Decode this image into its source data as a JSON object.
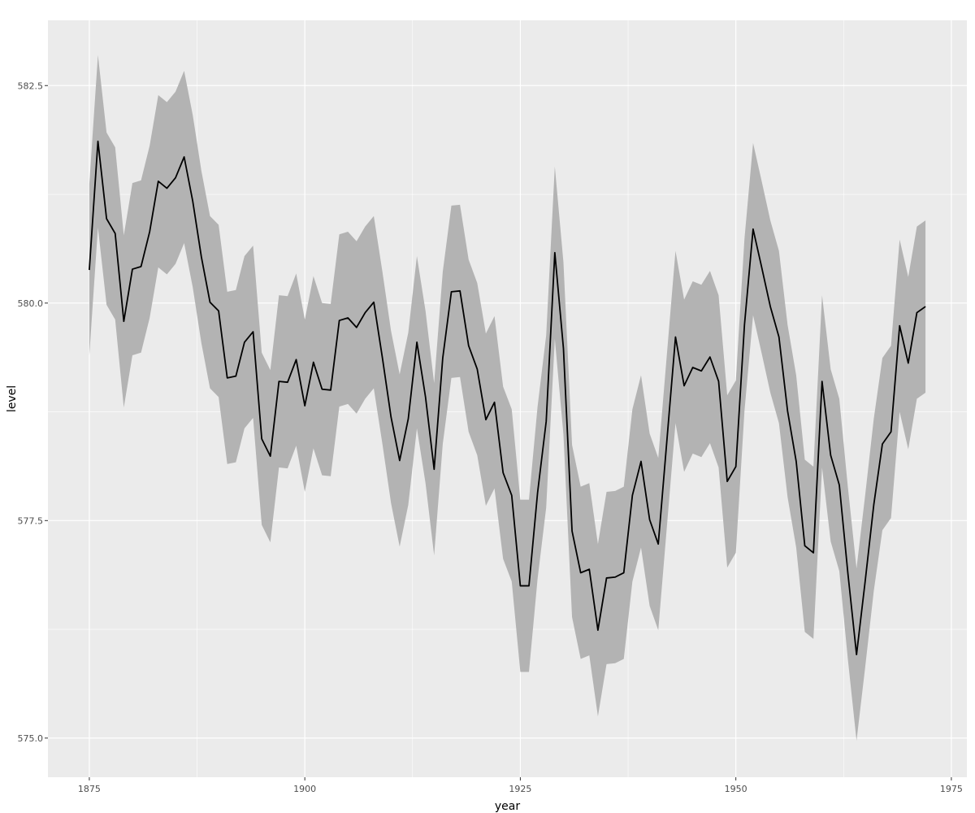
{
  "chart_data": {
    "type": "area",
    "title": "",
    "xlabel": "year",
    "ylabel": "level",
    "xlim": [
      1870.2,
      1976.8
    ],
    "ylim": [
      574.55,
      583.25
    ],
    "x_ticks": [
      1875,
      1900,
      1925,
      1950,
      1975
    ],
    "x_tick_labels": [
      "1875",
      "1900",
      "1925",
      "1950",
      "1975"
    ],
    "y_ticks": [
      575.0,
      577.5,
      580.0,
      582.5
    ],
    "y_tick_labels": [
      "575.0",
      "577.5",
      "580.0",
      "582.5"
    ],
    "grid": true,
    "legend": "none",
    "colors": {
      "panel": "#ebebeb",
      "grid": "#ffffff",
      "ribbon": "#b3b3b3",
      "line": "#000000"
    },
    "x": [
      1875,
      1876,
      1877,
      1878,
      1879,
      1880,
      1881,
      1882,
      1883,
      1884,
      1885,
      1886,
      1887,
      1888,
      1889,
      1890,
      1891,
      1892,
      1893,
      1894,
      1895,
      1896,
      1897,
      1898,
      1899,
      1900,
      1901,
      1902,
      1903,
      1904,
      1905,
      1906,
      1907,
      1908,
      1909,
      1910,
      1911,
      1912,
      1913,
      1914,
      1915,
      1916,
      1917,
      1918,
      1919,
      1920,
      1921,
      1922,
      1923,
      1924,
      1925,
      1926,
      1927,
      1928,
      1929,
      1930,
      1931,
      1932,
      1933,
      1934,
      1935,
      1936,
      1937,
      1938,
      1939,
      1940,
      1941,
      1942,
      1943,
      1944,
      1945,
      1946,
      1947,
      1948,
      1949,
      1950,
      1951,
      1952,
      1953,
      1954,
      1955,
      1956,
      1957,
      1958,
      1959,
      1960,
      1961,
      1962,
      1963,
      1964,
      1965,
      1966,
      1967,
      1968,
      1969,
      1970,
      1971,
      1972
    ],
    "series": [
      {
        "values": [
          580.38,
          581.86,
          580.97,
          580.8,
          579.79,
          580.39,
          580.42,
          580.82,
          581.4,
          581.32,
          581.44,
          581.68,
          581.17,
          580.53,
          580.01,
          579.91,
          579.14,
          579.16,
          579.55,
          579.67,
          578.44,
          578.24,
          579.1,
          579.09,
          579.35,
          578.82,
          579.32,
          579.01,
          579.0,
          579.8,
          579.83,
          579.72,
          579.89,
          580.01,
          579.37,
          578.69,
          578.19,
          578.67,
          579.55,
          578.92,
          578.09,
          579.37,
          580.13,
          580.14,
          579.51,
          579.24,
          578.66,
          578.86,
          578.05,
          577.79,
          576.75,
          576.75,
          577.82,
          578.64,
          580.58,
          579.48,
          577.38,
          576.9,
          576.94,
          576.24,
          576.84,
          576.85,
          576.9,
          577.79,
          578.18,
          577.51,
          577.23,
          578.42,
          579.61,
          579.05,
          579.26,
          579.22,
          579.38,
          579.1,
          577.95,
          578.12,
          579.75,
          580.85,
          580.41,
          579.96,
          579.61,
          578.76,
          578.18,
          577.21,
          577.13,
          579.1,
          578.25,
          577.91,
          576.89,
          575.96,
          576.8,
          577.68,
          578.38,
          578.52,
          579.74,
          579.31,
          579.89,
          579.96
        ]
      }
    ],
    "ribbon": {
      "lower": [
        579.4,
        580.87,
        579.98,
        579.81,
        578.8,
        579.4,
        579.43,
        579.83,
        580.41,
        580.33,
        580.45,
        580.69,
        580.18,
        579.54,
        579.02,
        578.92,
        578.15,
        578.17,
        578.56,
        578.68,
        577.45,
        577.25,
        578.11,
        578.1,
        578.36,
        577.83,
        578.33,
        578.02,
        578.01,
        578.81,
        578.84,
        578.73,
        578.9,
        579.02,
        578.38,
        577.7,
        577.2,
        577.68,
        578.56,
        577.93,
        577.1,
        578.38,
        579.14,
        579.15,
        578.52,
        578.25,
        577.67,
        577.87,
        577.06,
        576.8,
        575.76,
        575.76,
        576.83,
        577.65,
        579.59,
        578.49,
        576.39,
        575.91,
        575.95,
        575.25,
        575.85,
        575.86,
        575.91,
        576.8,
        577.19,
        576.52,
        576.24,
        577.43,
        578.62,
        578.06,
        578.27,
        578.23,
        578.39,
        578.11,
        576.96,
        577.13,
        578.76,
        579.86,
        579.42,
        578.97,
        578.62,
        577.77,
        577.19,
        576.22,
        576.14,
        578.11,
        577.26,
        576.92,
        575.9,
        574.97,
        575.81,
        576.69,
        577.39,
        577.53,
        578.75,
        578.32,
        578.9,
        578.97
      ],
      "upper": [
        581.37,
        582.85,
        581.96,
        581.79,
        580.78,
        581.38,
        581.41,
        581.81,
        582.39,
        582.31,
        582.43,
        582.67,
        582.16,
        581.52,
        581.0,
        580.9,
        580.13,
        580.15,
        580.54,
        580.66,
        579.43,
        579.23,
        580.09,
        580.08,
        580.34,
        579.81,
        580.31,
        580.0,
        579.99,
        580.79,
        580.82,
        580.71,
        580.88,
        581.0,
        580.36,
        579.68,
        579.18,
        579.66,
        580.54,
        579.91,
        579.08,
        580.36,
        581.12,
        581.13,
        580.5,
        580.23,
        579.65,
        579.85,
        579.04,
        578.78,
        577.74,
        577.74,
        578.81,
        579.63,
        581.57,
        580.47,
        578.37,
        577.89,
        577.93,
        577.23,
        577.83,
        577.84,
        577.89,
        578.78,
        579.17,
        578.5,
        578.22,
        579.41,
        580.6,
        580.04,
        580.25,
        580.21,
        580.37,
        580.09,
        578.94,
        579.11,
        580.74,
        581.84,
        581.4,
        580.95,
        580.6,
        579.75,
        579.17,
        578.2,
        578.12,
        580.09,
        579.24,
        578.9,
        577.88,
        576.95,
        577.79,
        578.67,
        579.37,
        579.51,
        580.73,
        580.3,
        580.88,
        580.95
      ]
    }
  }
}
